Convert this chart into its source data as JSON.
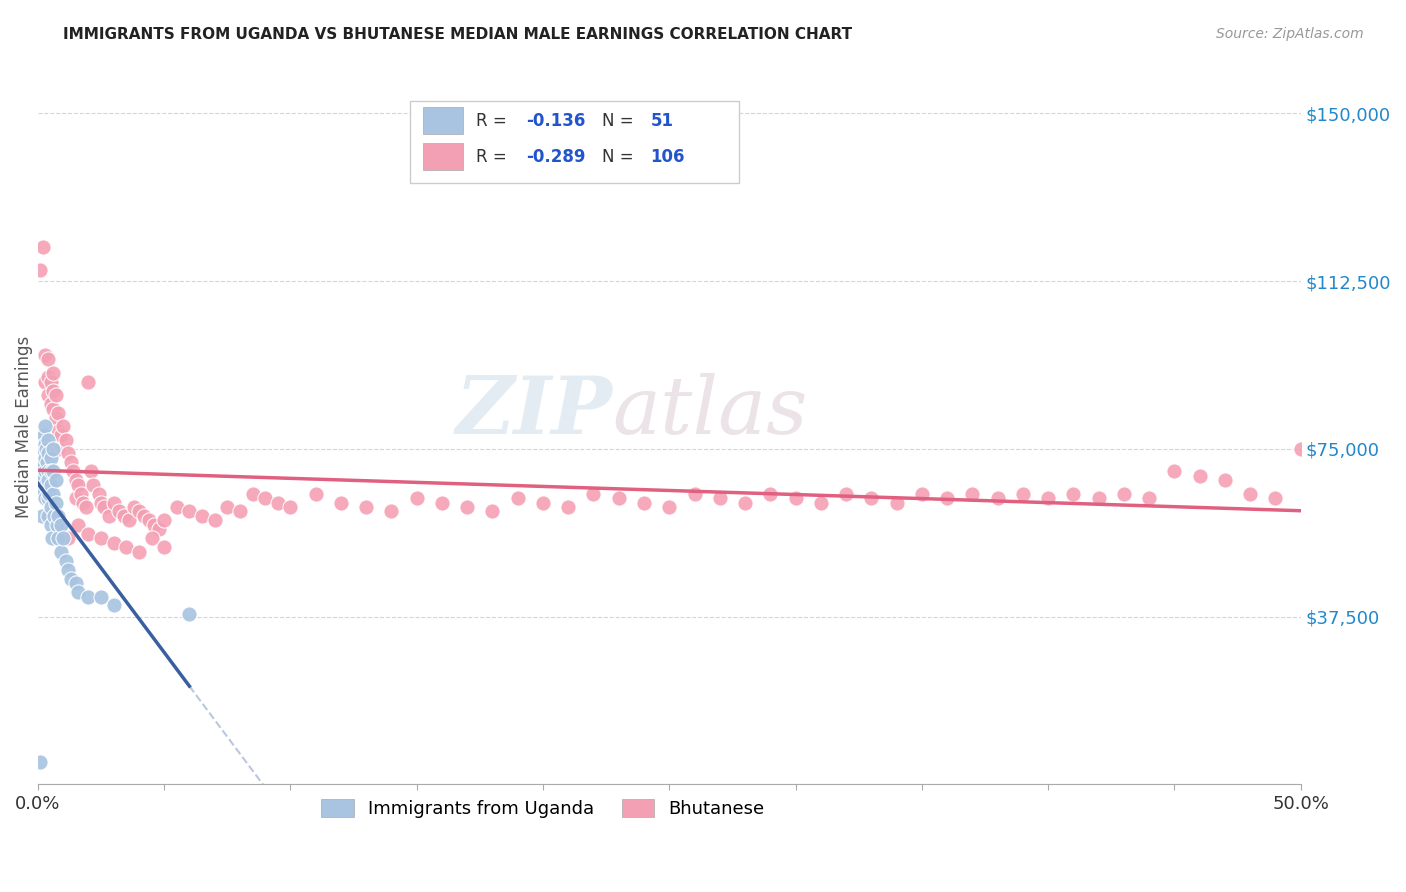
{
  "title": "IMMIGRANTS FROM UGANDA VS BHUTANESE MEDIAN MALE EARNINGS CORRELATION CHART",
  "source": "Source: ZipAtlas.com",
  "ylabel": "Median Male Earnings",
  "xlim": [
    0.0,
    0.5
  ],
  "ylim": [
    0,
    160000
  ],
  "yticks": [
    0,
    37500,
    75000,
    112500,
    150000
  ],
  "ytick_labels": [
    "",
    "$37,500",
    "$75,000",
    "$112,500",
    "$150,000"
  ],
  "xticks": [
    0.0,
    0.05,
    0.1,
    0.15,
    0.2,
    0.25,
    0.3,
    0.35,
    0.4,
    0.45,
    0.5
  ],
  "xtick_labels": [
    "0.0%",
    "",
    "",
    "",
    "",
    "",
    "",
    "",
    "",
    "",
    "50.0%"
  ],
  "uganda_R": -0.136,
  "uganda_N": 51,
  "bhutan_R": -0.289,
  "bhutan_N": 106,
  "uganda_color": "#a8c4e0",
  "bhutan_color": "#f4a0b4",
  "uganda_line_color": "#3a5fa0",
  "bhutan_line_color": "#e06080",
  "watermark_zip": "ZIP",
  "watermark_atlas": "atlas",
  "uganda_x": [
    0.0008,
    0.0012,
    0.0015,
    0.0018,
    0.002,
    0.002,
    0.0022,
    0.0025,
    0.003,
    0.003,
    0.003,
    0.003,
    0.003,
    0.003,
    0.0032,
    0.0035,
    0.004,
    0.004,
    0.004,
    0.004,
    0.004,
    0.004,
    0.0042,
    0.0045,
    0.005,
    0.005,
    0.005,
    0.005,
    0.005,
    0.0055,
    0.006,
    0.006,
    0.006,
    0.0065,
    0.007,
    0.007,
    0.0075,
    0.008,
    0.008,
    0.009,
    0.009,
    0.01,
    0.011,
    0.012,
    0.013,
    0.015,
    0.016,
    0.02,
    0.025,
    0.03,
    0.06
  ],
  "uganda_y": [
    5000,
    70000,
    65000,
    60000,
    75000,
    68000,
    72000,
    78000,
    80000,
    76000,
    73000,
    70000,
    67000,
    64000,
    75000,
    72000,
    77000,
    74000,
    70000,
    67000,
    64000,
    60000,
    68000,
    65000,
    73000,
    70000,
    67000,
    62000,
    58000,
    55000,
    75000,
    70000,
    65000,
    60000,
    68000,
    63000,
    58000,
    60000,
    55000,
    58000,
    52000,
    55000,
    50000,
    48000,
    46000,
    45000,
    43000,
    42000,
    42000,
    40000,
    38000
  ],
  "bhutan_x": [
    0.001,
    0.002,
    0.003,
    0.003,
    0.004,
    0.004,
    0.004,
    0.005,
    0.005,
    0.006,
    0.006,
    0.006,
    0.007,
    0.007,
    0.008,
    0.008,
    0.008,
    0.009,
    0.01,
    0.011,
    0.012,
    0.013,
    0.014,
    0.015,
    0.015,
    0.016,
    0.017,
    0.018,
    0.019,
    0.02,
    0.021,
    0.022,
    0.024,
    0.025,
    0.026,
    0.028,
    0.03,
    0.032,
    0.034,
    0.036,
    0.038,
    0.04,
    0.042,
    0.044,
    0.046,
    0.048,
    0.05,
    0.055,
    0.06,
    0.065,
    0.07,
    0.075,
    0.08,
    0.085,
    0.09,
    0.095,
    0.1,
    0.11,
    0.12,
    0.13,
    0.14,
    0.15,
    0.16,
    0.17,
    0.18,
    0.19,
    0.2,
    0.21,
    0.22,
    0.23,
    0.24,
    0.25,
    0.26,
    0.27,
    0.28,
    0.29,
    0.3,
    0.31,
    0.32,
    0.33,
    0.34,
    0.35,
    0.36,
    0.37,
    0.38,
    0.39,
    0.4,
    0.41,
    0.42,
    0.43,
    0.44,
    0.45,
    0.46,
    0.47,
    0.48,
    0.49,
    0.5,
    0.008,
    0.012,
    0.016,
    0.02,
    0.025,
    0.03,
    0.035,
    0.04,
    0.045,
    0.05
  ],
  "bhutan_y": [
    115000,
    120000,
    96000,
    90000,
    95000,
    91000,
    87000,
    90000,
    85000,
    92000,
    88000,
    84000,
    87000,
    82000,
    83000,
    79000,
    75000,
    78000,
    80000,
    77000,
    74000,
    72000,
    70000,
    68000,
    64000,
    67000,
    65000,
    63000,
    62000,
    90000,
    70000,
    67000,
    65000,
    63000,
    62000,
    60000,
    63000,
    61000,
    60000,
    59000,
    62000,
    61000,
    60000,
    59000,
    58000,
    57000,
    59000,
    62000,
    61000,
    60000,
    59000,
    62000,
    61000,
    65000,
    64000,
    63000,
    62000,
    65000,
    63000,
    62000,
    61000,
    64000,
    63000,
    62000,
    61000,
    64000,
    63000,
    62000,
    65000,
    64000,
    63000,
    62000,
    65000,
    64000,
    63000,
    65000,
    64000,
    63000,
    65000,
    64000,
    63000,
    65000,
    64000,
    65000,
    64000,
    65000,
    64000,
    65000,
    64000,
    65000,
    64000,
    70000,
    69000,
    68000,
    65000,
    64000,
    75000,
    57000,
    55000,
    58000,
    56000,
    55000,
    54000,
    53000,
    52000,
    55000,
    53000
  ]
}
